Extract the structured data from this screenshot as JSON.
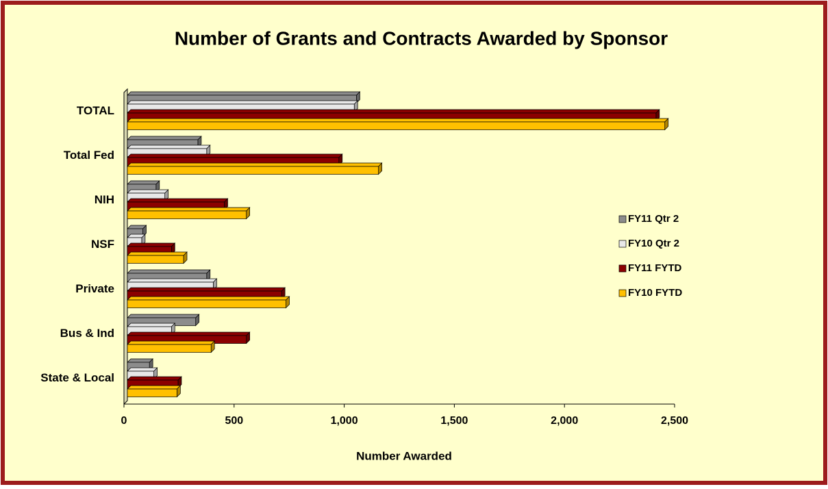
{
  "chart_data": {
    "type": "hbar3d",
    "title": "Number of Grants and Contracts Awarded by Sponsor",
    "xlabel": "Number Awarded",
    "categories": [
      "TOTAL",
      "Total Fed",
      "NIH",
      "NSF",
      "Private",
      "Bus & Ind",
      "State & Local"
    ],
    "series": [
      {
        "name": "FY11 Qtr 2",
        "color": "#8c8c8c",
        "values": [
          1040,
          320,
          130,
          70,
          360,
          310,
          100
        ]
      },
      {
        "name": "FY10 Qtr 2",
        "color": "#e8e8e8",
        "values": [
          1030,
          360,
          170,
          65,
          390,
          200,
          120
        ]
      },
      {
        "name": "FY11 FYTD",
        "color": "#8b0000",
        "values": [
          2400,
          960,
          440,
          200,
          700,
          540,
          230
        ]
      },
      {
        "name": "FY10 FYTD",
        "color": "#ffc000",
        "values": [
          2440,
          1140,
          540,
          255,
          720,
          380,
          225
        ]
      }
    ],
    "xlim": [
      0,
      2500
    ],
    "xticks": [
      0,
      500,
      {
        "value": 1000,
        "label": "1,000"
      },
      {
        "value": 1500,
        "label": "1,500"
      },
      {
        "value": 2000,
        "label": "2,000"
      },
      {
        "value": 2500,
        "label": "2,500"
      }
    ],
    "legend": "right"
  }
}
